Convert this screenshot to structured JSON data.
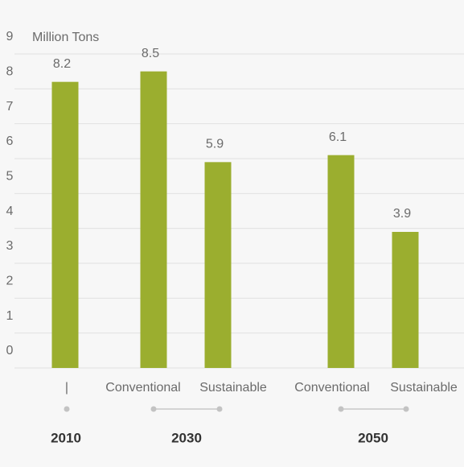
{
  "chart_data": {
    "type": "bar",
    "unit_label": "Million Tons",
    "categories": [
      "|",
      "Conventional",
      "Sustainable",
      "Conventional",
      "Sustainable"
    ],
    "values": [
      8.2,
      8.5,
      5.9,
      6.1,
      3.9
    ],
    "groups": [
      "2010",
      "2030",
      "2050"
    ],
    "color": "#9bae2f",
    "ylim": [
      0,
      9
    ],
    "yticks": [
      0,
      1,
      2,
      3,
      4,
      5,
      6,
      7,
      8,
      9
    ],
    "grid": true
  }
}
